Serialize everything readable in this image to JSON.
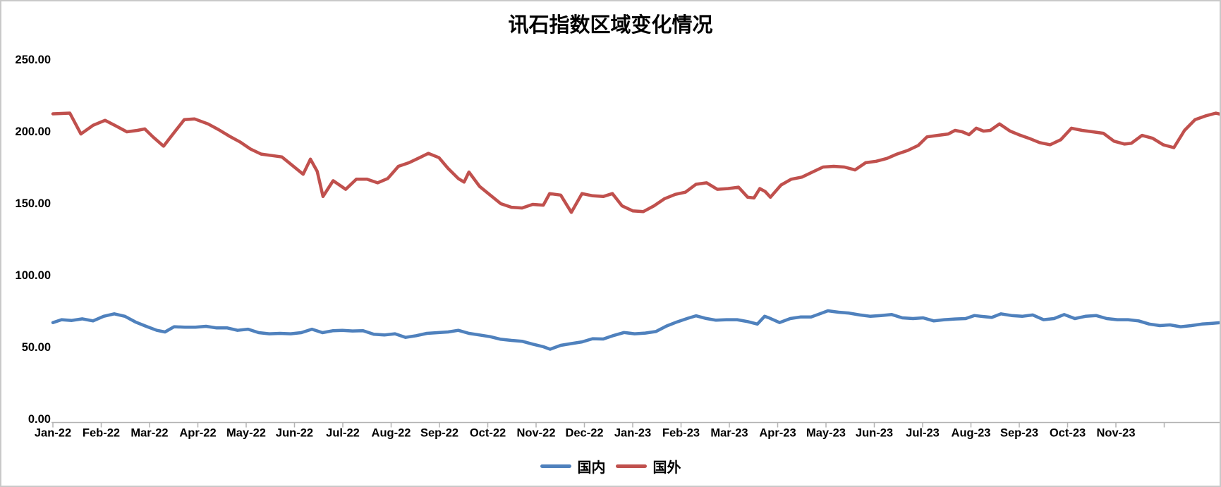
{
  "page": {
    "background": "#ffffff",
    "frame_border_color": "#c9c9c9"
  },
  "chart_data": {
    "type": "line",
    "title": "讯石指数区域变化情况",
    "gridlines": false,
    "legend_position": "bottom",
    "axis_color": "#b3b3b3",
    "text_color": "#000000",
    "x_axis": {
      "t_unit": "months since Jan-22",
      "range": [
        0,
        24.2
      ],
      "labels": [
        "Jan-22",
        "Feb-22",
        "Mar-22",
        "Apr-22",
        "May-22",
        "Jun-22",
        "Jul-22",
        "Aug-22",
        "Sep-22",
        "Oct-22",
        "Nov-22",
        "Dec-22",
        "Jan-23",
        "Feb-23",
        "Mar-23",
        "Apr-23",
        "May-23",
        "Jun-23",
        "Jul-23",
        "Aug-23",
        "Sep-23",
        "Oct-23",
        "Nov-23"
      ]
    },
    "y_axis": {
      "range": [
        0,
        250
      ],
      "tick_step": 50,
      "ticks": [
        250,
        200,
        150,
        100,
        50,
        0
      ],
      "tick_labels": [
        "250.00",
        "200.00",
        "150.00",
        "100.00",
        "50.00",
        "0.00"
      ]
    },
    "series": [
      {
        "name": "国内",
        "color": "#4F81BD",
        "points": [
          [
            0,
            66.8
          ],
          [
            0.18,
            68.8
          ],
          [
            0.39,
            68.3
          ],
          [
            0.61,
            69.4
          ],
          [
            0.83,
            68
          ],
          [
            1.05,
            71.2
          ],
          [
            1.27,
            72.9
          ],
          [
            1.49,
            71.2
          ],
          [
            1.71,
            67.2
          ],
          [
            1.93,
            64.2
          ],
          [
            2.15,
            61.4
          ],
          [
            2.32,
            60.3
          ],
          [
            2.51,
            63.9
          ],
          [
            2.73,
            63.6
          ],
          [
            2.95,
            63.6
          ],
          [
            3.17,
            64.2
          ],
          [
            3.39,
            63.1
          ],
          [
            3.61,
            63.1
          ],
          [
            3.82,
            61.4
          ],
          [
            4.04,
            62.2
          ],
          [
            4.26,
            59.8
          ],
          [
            4.48,
            59
          ],
          [
            4.7,
            59.3
          ],
          [
            4.92,
            59
          ],
          [
            5.14,
            59.8
          ],
          [
            5.36,
            62.2
          ],
          [
            5.58,
            59.8
          ],
          [
            5.8,
            61.2
          ],
          [
            5.99,
            61.4
          ],
          [
            6.2,
            61
          ],
          [
            6.42,
            61.2
          ],
          [
            6.64,
            58.7
          ],
          [
            6.86,
            58.2
          ],
          [
            7.08,
            59
          ],
          [
            7.3,
            56.5
          ],
          [
            7.52,
            57.7
          ],
          [
            7.74,
            59.3
          ],
          [
            7.96,
            59.8
          ],
          [
            8.18,
            60.3
          ],
          [
            8.39,
            61.4
          ],
          [
            8.61,
            59.3
          ],
          [
            8.83,
            58.2
          ],
          [
            9.05,
            57
          ],
          [
            9.27,
            55.2
          ],
          [
            9.49,
            54.4
          ],
          [
            9.71,
            53.8
          ],
          [
            9.93,
            51.8
          ],
          [
            10.15,
            50
          ],
          [
            10.29,
            48.3
          ],
          [
            10.51,
            51
          ],
          [
            10.73,
            52.2
          ],
          [
            10.95,
            53.4
          ],
          [
            11.17,
            55.6
          ],
          [
            11.39,
            55.4
          ],
          [
            11.61,
            57.9
          ],
          [
            11.82,
            59.9
          ],
          [
            12.04,
            59
          ],
          [
            12.26,
            59.5
          ],
          [
            12.48,
            60.6
          ],
          [
            12.7,
            64.4
          ],
          [
            12.92,
            67.3
          ],
          [
            13.14,
            69.8
          ],
          [
            13.31,
            71.5
          ],
          [
            13.5,
            69.8
          ],
          [
            13.72,
            68.5
          ],
          [
            13.94,
            68.8
          ],
          [
            14.16,
            68.8
          ],
          [
            14.38,
            67.5
          ],
          [
            14.58,
            65.8
          ],
          [
            14.73,
            71.2
          ],
          [
            14.82,
            70.1
          ],
          [
            15.04,
            66.8
          ],
          [
            15.26,
            69.6
          ],
          [
            15.47,
            70.7
          ],
          [
            15.69,
            70.7
          ],
          [
            15.91,
            73.4
          ],
          [
            16.04,
            75
          ],
          [
            16.26,
            74
          ],
          [
            16.48,
            73.4
          ],
          [
            16.7,
            72.1
          ],
          [
            16.92,
            71.2
          ],
          [
            17.14,
            71.7
          ],
          [
            17.36,
            72.4
          ],
          [
            17.58,
            70.1
          ],
          [
            17.8,
            69.6
          ],
          [
            18.01,
            70.1
          ],
          [
            18.23,
            68
          ],
          [
            18.45,
            68.8
          ],
          [
            18.67,
            69.3
          ],
          [
            18.89,
            69.6
          ],
          [
            19.07,
            71.7
          ],
          [
            19.21,
            71.2
          ],
          [
            19.43,
            70.4
          ],
          [
            19.62,
            72.9
          ],
          [
            19.84,
            71.7
          ],
          [
            20.06,
            71.2
          ],
          [
            20.28,
            72.1
          ],
          [
            20.5,
            68.8
          ],
          [
            20.72,
            69.6
          ],
          [
            20.93,
            72.4
          ],
          [
            21.15,
            69.6
          ],
          [
            21.37,
            71.2
          ],
          [
            21.59,
            71.7
          ],
          [
            21.81,
            69.6
          ],
          [
            22.03,
            68.8
          ],
          [
            22.25,
            68.8
          ],
          [
            22.47,
            68
          ],
          [
            22.69,
            65.8
          ],
          [
            22.91,
            64.7
          ],
          [
            23.12,
            65.2
          ],
          [
            23.34,
            63.9
          ],
          [
            23.56,
            64.7
          ],
          [
            23.78,
            65.8
          ],
          [
            24,
            66.3
          ],
          [
            24.19,
            66.8
          ]
        ]
      },
      {
        "name": "国外",
        "color": "#C0504D",
        "points": [
          [
            0,
            212
          ],
          [
            0.35,
            212.5
          ],
          [
            0.58,
            198
          ],
          [
            0.83,
            204
          ],
          [
            1.08,
            207.5
          ],
          [
            1.31,
            203.5
          ],
          [
            1.53,
            199.5
          ],
          [
            1.75,
            200.5
          ],
          [
            1.9,
            201.5
          ],
          [
            2.07,
            196
          ],
          [
            2.29,
            189.5
          ],
          [
            2.51,
            199
          ],
          [
            2.72,
            208
          ],
          [
            2.93,
            208.5
          ],
          [
            3.21,
            205
          ],
          [
            3.43,
            201
          ],
          [
            3.65,
            196.5
          ],
          [
            3.87,
            192.5
          ],
          [
            4.09,
            187.5
          ],
          [
            4.31,
            184
          ],
          [
            4.53,
            183
          ],
          [
            4.74,
            182
          ],
          [
            4.96,
            176
          ],
          [
            5.18,
            170
          ],
          [
            5.33,
            180.5
          ],
          [
            5.47,
            172
          ],
          [
            5.59,
            154.5
          ],
          [
            5.8,
            165.5
          ],
          [
            6.06,
            159.5
          ],
          [
            6.28,
            166.5
          ],
          [
            6.5,
            166.5
          ],
          [
            6.72,
            164
          ],
          [
            6.93,
            167
          ],
          [
            7.15,
            175.5
          ],
          [
            7.37,
            178
          ],
          [
            7.59,
            181.5
          ],
          [
            7.77,
            184.5
          ],
          [
            7.99,
            181.5
          ],
          [
            8.18,
            174
          ],
          [
            8.39,
            167
          ],
          [
            8.51,
            164.5
          ],
          [
            8.61,
            171.5
          ],
          [
            8.83,
            161.5
          ],
          [
            9.05,
            155.5
          ],
          [
            9.27,
            149.5
          ],
          [
            9.49,
            147
          ],
          [
            9.71,
            146.5
          ],
          [
            9.93,
            149
          ],
          [
            10.15,
            148.5
          ],
          [
            10.28,
            156.5
          ],
          [
            10.51,
            155.5
          ],
          [
            10.73,
            143.5
          ],
          [
            10.95,
            156.5
          ],
          [
            11.17,
            155
          ],
          [
            11.39,
            154.5
          ],
          [
            11.58,
            156.5
          ],
          [
            11.78,
            148
          ],
          [
            12,
            144.5
          ],
          [
            12.22,
            144
          ],
          [
            12.44,
            148
          ],
          [
            12.66,
            153
          ],
          [
            12.88,
            156
          ],
          [
            13.09,
            157.5
          ],
          [
            13.31,
            163
          ],
          [
            13.53,
            164
          ],
          [
            13.75,
            159.5
          ],
          [
            13.97,
            160
          ],
          [
            14.19,
            161
          ],
          [
            14.38,
            154
          ],
          [
            14.51,
            153.5
          ],
          [
            14.63,
            160
          ],
          [
            14.74,
            158
          ],
          [
            14.85,
            154
          ],
          [
            15.07,
            162.5
          ],
          [
            15.28,
            166.5
          ],
          [
            15.5,
            168
          ],
          [
            15.72,
            171.5
          ],
          [
            15.94,
            175
          ],
          [
            16.16,
            175.5
          ],
          [
            16.38,
            175
          ],
          [
            16.6,
            173
          ],
          [
            16.82,
            178
          ],
          [
            17.04,
            179
          ],
          [
            17.26,
            181
          ],
          [
            17.47,
            184
          ],
          [
            17.69,
            186.5
          ],
          [
            17.91,
            190
          ],
          [
            18.09,
            196
          ],
          [
            18.31,
            197
          ],
          [
            18.53,
            198
          ],
          [
            18.67,
            200.5
          ],
          [
            18.82,
            199.5
          ],
          [
            18.96,
            197.5
          ],
          [
            19.11,
            202
          ],
          [
            19.26,
            200
          ],
          [
            19.4,
            200.5
          ],
          [
            19.59,
            205
          ],
          [
            19.81,
            200
          ],
          [
            19.99,
            197.5
          ],
          [
            20.2,
            195
          ],
          [
            20.42,
            192
          ],
          [
            20.64,
            190.5
          ],
          [
            20.86,
            194
          ],
          [
            21.08,
            202
          ],
          [
            21.3,
            200.5
          ],
          [
            21.52,
            199.5
          ],
          [
            21.74,
            198.5
          ],
          [
            21.96,
            193
          ],
          [
            22.18,
            191
          ],
          [
            22.32,
            191.5
          ],
          [
            22.54,
            197
          ],
          [
            22.76,
            195
          ],
          [
            22.98,
            190.5
          ],
          [
            23.2,
            188.5
          ],
          [
            23.42,
            200.5
          ],
          [
            23.64,
            208
          ],
          [
            23.85,
            210.5
          ],
          [
            24.07,
            212.5
          ],
          [
            24.19,
            211.5
          ]
        ]
      }
    ]
  }
}
